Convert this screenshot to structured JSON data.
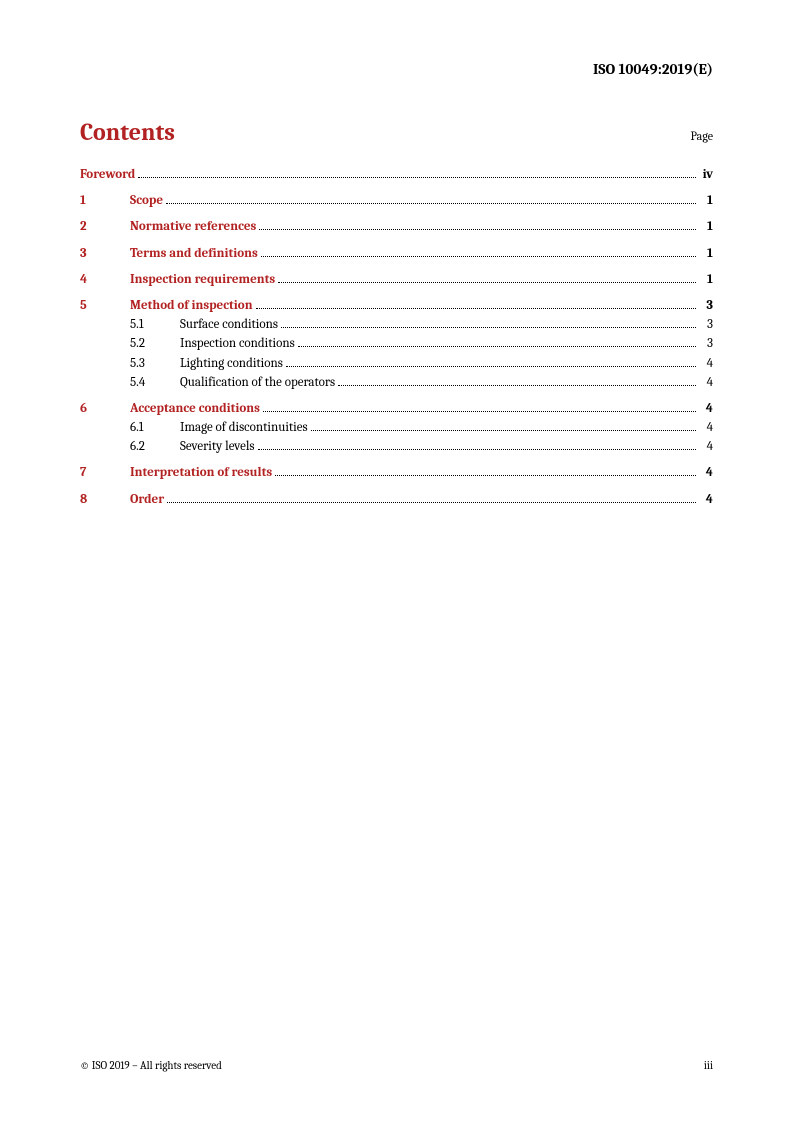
{
  "header": {
    "doc_id": "ISO 10049:2019(E)"
  },
  "title": {
    "contents": "Contents",
    "page_label": "Page"
  },
  "toc": {
    "foreword": {
      "label": "Foreword",
      "page": "iv"
    },
    "sections": [
      {
        "num": "1",
        "label": "Scope",
        "page": "1",
        "subs": []
      },
      {
        "num": "2",
        "label": "Normative references",
        "page": "1",
        "subs": []
      },
      {
        "num": "3",
        "label": "Terms and definitions",
        "page": "1",
        "subs": []
      },
      {
        "num": "4",
        "label": "Inspection requirements",
        "page": "1",
        "subs": []
      },
      {
        "num": "5",
        "label": "Method of inspection",
        "page": "3",
        "subs": [
          {
            "num": "5.1",
            "label": "Surface conditions",
            "page": "3"
          },
          {
            "num": "5.2",
            "label": "Inspection conditions",
            "page": "3"
          },
          {
            "num": "5.3",
            "label": "Lighting conditions",
            "page": "4"
          },
          {
            "num": "5.4",
            "label": "Qualification of the operators",
            "page": "4"
          }
        ]
      },
      {
        "num": "6",
        "label": "Acceptance conditions",
        "page": "4",
        "subs": [
          {
            "num": "6.1",
            "label": "Image of discontinuities",
            "page": "4"
          },
          {
            "num": "6.2",
            "label": "Severity levels",
            "page": "4"
          }
        ]
      },
      {
        "num": "7",
        "label": "Interpretation of results",
        "page": "4",
        "subs": []
      },
      {
        "num": "8",
        "label": "Order",
        "page": "4",
        "subs": []
      }
    ]
  },
  "footer": {
    "copyright": "© ISO 2019 – All rights reserved",
    "page_number": "iii"
  },
  "colors": {
    "accent": "#b22222",
    "text": "#000000",
    "background": "#ffffff"
  },
  "typography": {
    "title_fontsize": 24,
    "body_fontsize": 13,
    "header_fontsize": 15,
    "footer_fontsize": 11
  }
}
